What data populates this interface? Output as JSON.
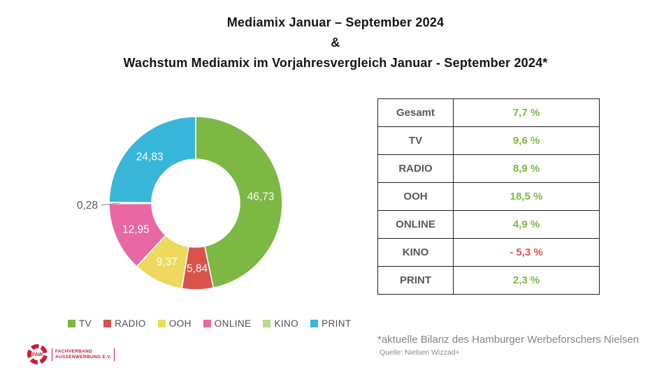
{
  "title": {
    "line1": "Mediamix Januar – September 2024",
    "line2": "&",
    "line3": "Wachstum Mediamix im Vorjahresvergleich Januar - September 2024*"
  },
  "chart_data": {
    "type": "pie",
    "title": "Mediamix Januar – September 2024",
    "donut": true,
    "unit": "%",
    "start_angle_deg": 0,
    "direction": "clockwise",
    "slices": [
      {
        "label": "TV",
        "value": 46.73,
        "display": "46,73",
        "color": "#7cb843",
        "label_outside": false
      },
      {
        "label": "RADIO",
        "value": 5.84,
        "display": "5,84",
        "color": "#d9534a",
        "label_outside": false
      },
      {
        "label": "OOH",
        "value": 9.37,
        "display": "9,37",
        "color": "#edd95e",
        "label_outside": false
      },
      {
        "label": "ONLINE",
        "value": 12.95,
        "display": "12,95",
        "color": "#e867a4",
        "label_outside": false
      },
      {
        "label": "KINO",
        "value": 0.28,
        "display": "0,28",
        "color": "#bcd78e",
        "label_outside": true
      },
      {
        "label": "PRINT",
        "value": 24.83,
        "display": "24,83",
        "color": "#38b6da",
        "label_outside": false
      }
    ],
    "legend": [
      "TV",
      "RADIO",
      "OOH",
      "ONLINE",
      "KINO",
      "PRINT"
    ],
    "legend_position": "bottom"
  },
  "growth_table": {
    "rows": [
      {
        "label": "Gesamt",
        "value": "7,7 %",
        "trend": "positive"
      },
      {
        "label": "TV",
        "value": "9,6 %",
        "trend": "positive"
      },
      {
        "label": "RADIO",
        "value": "8,9 %",
        "trend": "positive"
      },
      {
        "label": "OOH",
        "value": "18,5 %",
        "trend": "positive"
      },
      {
        "label": "ONLINE",
        "value": "4,9 %",
        "trend": "positive"
      },
      {
        "label": "KINO",
        "value": "- 5,3 %",
        "trend": "negative"
      },
      {
        "label": "PRINT",
        "value": "2,3 %",
        "trend": "positive"
      }
    ],
    "positive_color": "#7cb843",
    "negative_color": "#e2544b"
  },
  "footnote": {
    "line1": "*aktuelle Bilanz des Hamburger Werbeforschers Nielsen",
    "line2": "Quelle: Nielsen Wizzad+"
  },
  "logo": {
    "abbr": "FAW",
    "line1": "FACHVERBAND",
    "line2": "AUSSENWERBUNG E.V.",
    "color": "#c41e36"
  }
}
